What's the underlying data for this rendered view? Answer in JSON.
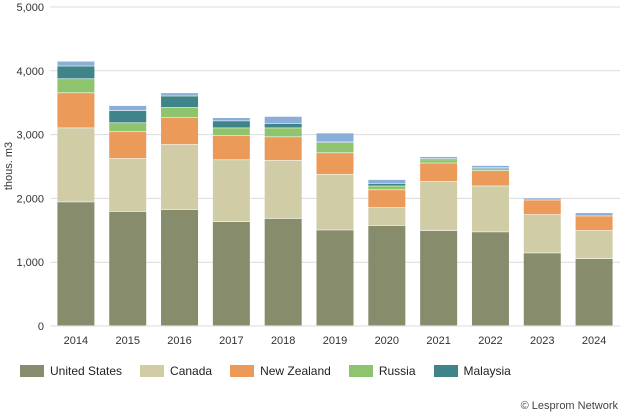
{
  "chart_data": {
    "type": "bar",
    "stacked": true,
    "ylabel": "thous. m3",
    "ylim": [
      0,
      5000
    ],
    "yticks": [
      "0",
      "1,000",
      "2,000",
      "3,000",
      "4,000",
      "5,000"
    ],
    "ytick_values": [
      0,
      1000,
      2000,
      3000,
      4000,
      5000
    ],
    "grid": true,
    "legend_position": "bottom",
    "categories": [
      "2014",
      "2015",
      "2016",
      "2017",
      "2018",
      "2019",
      "2020",
      "2021",
      "2022",
      "2023",
      "2024"
    ],
    "series": [
      {
        "name": "United States",
        "color": "#878c6c",
        "values": [
          1940,
          1790,
          1820,
          1630,
          1680,
          1500,
          1570,
          1490,
          1470,
          1140,
          1050
        ]
      },
      {
        "name": "Canada",
        "color": "#cfcca6",
        "values": [
          1160,
          830,
          1020,
          970,
          910,
          870,
          280,
          770,
          720,
          600,
          440
        ]
      },
      {
        "name": "New Zealand",
        "color": "#ec9a5a",
        "values": [
          550,
          420,
          420,
          380,
          370,
          340,
          280,
          290,
          240,
          230,
          230
        ]
      },
      {
        "name": "Russia",
        "color": "#8fc46e",
        "values": [
          220,
          140,
          160,
          120,
          140,
          160,
          60,
          50,
          30,
          0,
          0
        ]
      },
      {
        "name": "Malaysia",
        "color": "#3f8489",
        "values": [
          200,
          190,
          180,
          110,
          70,
          20,
          40,
          20,
          20,
          0,
          0
        ]
      },
      {
        "name": "",
        "color": "#8aaed8",
        "values": [
          75,
          80,
          50,
          50,
          110,
          130,
          60,
          30,
          30,
          30,
          50
        ]
      }
    ]
  },
  "credit": "© Lesprom Network"
}
